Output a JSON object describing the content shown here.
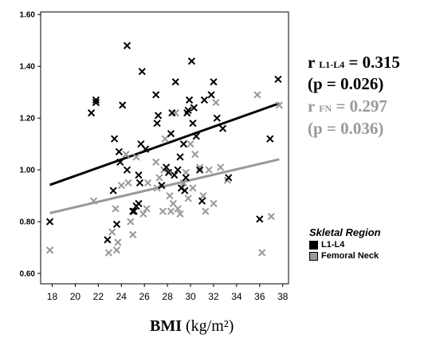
{
  "chart_data": {
    "type": "scatter",
    "xlabel": "BMI",
    "xlabel_unit": "(kg/m²)",
    "xlim": [
      17,
      38.5
    ],
    "ylim": [
      0.56,
      1.61
    ],
    "xticks": [
      18,
      20,
      22,
      24,
      26,
      28,
      30,
      32,
      34,
      36,
      38
    ],
    "yticks": [
      "0.60",
      "0.80",
      "1.00",
      "1.20",
      "1.40",
      "1.60"
    ],
    "grid": false,
    "legend": {
      "title": "Skletal Region",
      "position": "right",
      "entries": [
        {
          "label": "L1-L4",
          "color": "#000000"
        },
        {
          "label": "Femoral Neck",
          "color": "#999999"
        }
      ]
    },
    "annotations": [
      {
        "prefix": "r ",
        "sub": "L1-L4",
        "value": " = 0.315",
        "color": "#000000"
      },
      {
        "text": "(p = 0.026)",
        "color": "#000000"
      },
      {
        "prefix": "r ",
        "sub": "FN",
        "value": " = 0.297",
        "color": "#999999"
      },
      {
        "text": "(p = 0.036)",
        "color": "#999999"
      }
    ],
    "series": [
      {
        "name": "L1-L4",
        "color": "#000000",
        "fit": [
          [
            17.8,
            0.942
          ],
          [
            37.7,
            1.257
          ]
        ],
        "points": [
          [
            17.8,
            0.8
          ],
          [
            21.4,
            1.22
          ],
          [
            21.8,
            1.27
          ],
          [
            21.8,
            1.26
          ],
          [
            22.8,
            0.73
          ],
          [
            23.4,
            1.12
          ],
          [
            23.3,
            0.92
          ],
          [
            23.6,
            0.79
          ],
          [
            23.8,
            1.07
          ],
          [
            23.9,
            1.03
          ],
          [
            24.1,
            1.25
          ],
          [
            24.5,
            1.48
          ],
          [
            24.5,
            1.0
          ],
          [
            25.0,
            0.84
          ],
          [
            25.1,
            0.84
          ],
          [
            25.3,
            0.86
          ],
          [
            25.5,
            0.87
          ],
          [
            25.5,
            0.98
          ],
          [
            25.6,
            0.95
          ],
          [
            25.7,
            1.1
          ],
          [
            25.8,
            1.38
          ],
          [
            26.1,
            1.08
          ],
          [
            27.0,
            1.29
          ],
          [
            27.1,
            1.18
          ],
          [
            27.2,
            1.21
          ],
          [
            27.5,
            0.94
          ],
          [
            27.9,
            1.01
          ],
          [
            28.1,
            0.99
          ],
          [
            28.3,
            1.14
          ],
          [
            28.4,
            1.22
          ],
          [
            28.6,
            0.98
          ],
          [
            28.7,
            1.34
          ],
          [
            28.9,
            1.0
          ],
          [
            29.1,
            1.05
          ],
          [
            29.2,
            0.93
          ],
          [
            29.4,
            1.1
          ],
          [
            29.5,
            0.92
          ],
          [
            29.6,
            0.97
          ],
          [
            29.7,
            1.22
          ],
          [
            29.8,
            1.23
          ],
          [
            29.9,
            1.27
          ],
          [
            30.1,
            1.42
          ],
          [
            30.2,
            1.18
          ],
          [
            30.3,
            1.24
          ],
          [
            30.5,
            1.13
          ],
          [
            30.8,
            1.0
          ],
          [
            31.0,
            0.88
          ],
          [
            31.2,
            1.27
          ],
          [
            31.8,
            1.29
          ],
          [
            32.0,
            1.34
          ],
          [
            32.3,
            1.2
          ],
          [
            32.8,
            1.16
          ],
          [
            33.3,
            0.97
          ],
          [
            36.0,
            0.81
          ],
          [
            36.9,
            1.12
          ],
          [
            37.6,
            1.35
          ]
        ]
      },
      {
        "name": "Femoral Neck",
        "color": "#999999",
        "fit": [
          [
            17.8,
            0.833
          ],
          [
            37.7,
            1.041
          ]
        ],
        "points": [
          [
            17.8,
            0.69
          ],
          [
            21.6,
            0.88
          ],
          [
            22.9,
            0.68
          ],
          [
            23.2,
            0.76
          ],
          [
            23.5,
            0.85
          ],
          [
            23.6,
            0.69
          ],
          [
            23.7,
            0.72
          ],
          [
            24.0,
            0.94
          ],
          [
            24.4,
            1.06
          ],
          [
            24.6,
            0.95
          ],
          [
            24.8,
            0.8
          ],
          [
            25.0,
            0.75
          ],
          [
            25.3,
            1.05
          ],
          [
            25.9,
            0.83
          ],
          [
            26.2,
            0.85
          ],
          [
            26.3,
            0.95
          ],
          [
            27.0,
            1.03
          ],
          [
            27.1,
            0.93
          ],
          [
            27.3,
            0.97
          ],
          [
            27.6,
            0.84
          ],
          [
            27.7,
            1.0
          ],
          [
            27.8,
            1.12
          ],
          [
            28.2,
            0.9
          ],
          [
            28.3,
            0.84
          ],
          [
            28.5,
            0.87
          ],
          [
            28.7,
            1.22
          ],
          [
            28.9,
            0.85
          ],
          [
            29.1,
            0.83
          ],
          [
            29.4,
            0.95
          ],
          [
            29.6,
            0.99
          ],
          [
            29.8,
            0.89
          ],
          [
            30.0,
            1.1
          ],
          [
            30.2,
            0.93
          ],
          [
            30.4,
            1.06
          ],
          [
            30.8,
            1.01
          ],
          [
            31.1,
            0.9
          ],
          [
            31.3,
            0.84
          ],
          [
            31.6,
            1.0
          ],
          [
            32.0,
            0.87
          ],
          [
            32.2,
            1.26
          ],
          [
            32.6,
            1.01
          ],
          [
            33.2,
            0.96
          ],
          [
            35.8,
            1.29
          ],
          [
            36.2,
            0.68
          ],
          [
            37.0,
            0.82
          ],
          [
            37.7,
            1.25
          ]
        ]
      }
    ]
  }
}
